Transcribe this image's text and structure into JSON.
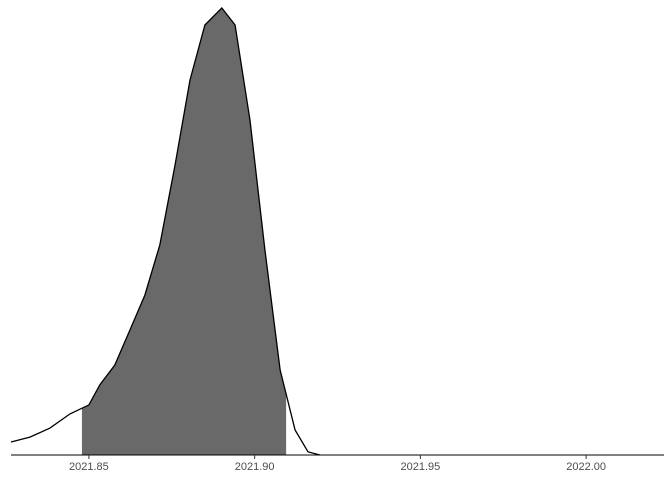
{
  "chart_data": {
    "type": "density",
    "x": [
      2021.8265,
      2021.8322,
      2021.8382,
      2021.8443,
      2021.85,
      2021.8533,
      2021.8578,
      2021.8624,
      2021.8669,
      2021.8714,
      2021.876,
      2021.8805,
      2021.885,
      2021.8901,
      2021.8941,
      2021.8986,
      2021.9031,
      2021.9077,
      2021.9122,
      2021.9161,
      2021.9197
    ],
    "values": [
      2.9,
      4.0,
      6.0,
      9.2,
      11.2,
      15.7,
      20.1,
      28.0,
      35.8,
      47.0,
      64.9,
      83.9,
      96.2,
      100,
      96.2,
      74.9,
      45.9,
      19.0,
      5.6,
      0.7,
      0
    ],
    "interval": [
      2021.8479,
      2021.9095
    ],
    "fill_color": "#696969",
    "line_color": "#000000",
    "xlim": [
      2021.8265,
      2022.0235
    ],
    "xticks": [
      2021.85,
      {
        "value": 2021.9,
        "label": "2021.90"
      },
      2021.95,
      {
        "value": 2022.0,
        "label": "2022.00"
      }
    ],
    "ylim": [
      0,
      100
    ]
  }
}
